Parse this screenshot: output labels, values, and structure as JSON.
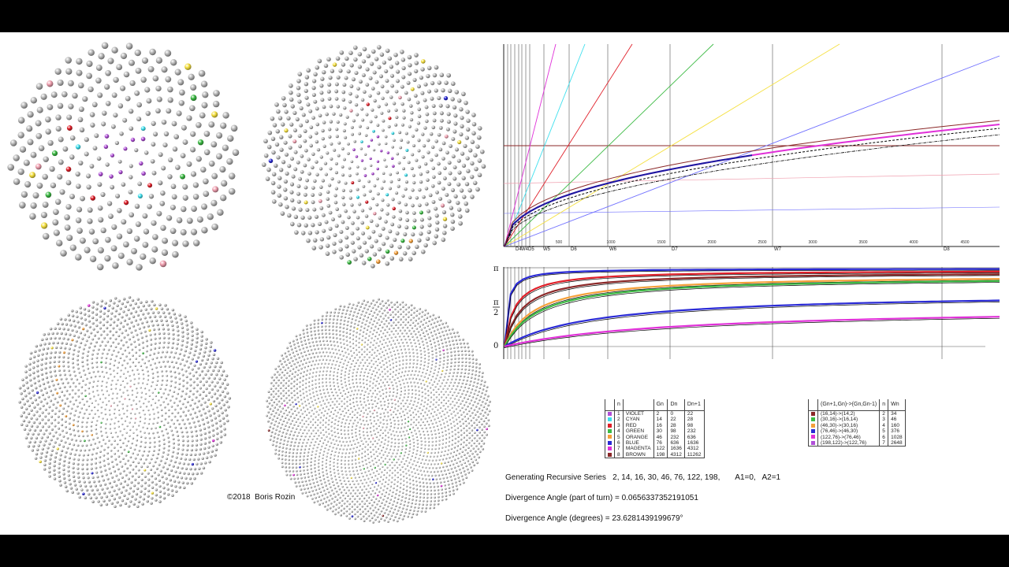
{
  "copyright": "©2018  Boris Rozin",
  "colors": {
    "violet": "#b04fd8",
    "cyan": "#3fe0ee",
    "red": "#e0202a",
    "green": "#3dbb45",
    "orange": "#f5a03a",
    "blue": "#2a2ad6",
    "magenta": "#e030d8",
    "brown": "#8b2828",
    "pink": "#f0a0b0",
    "yellow": "#f5e040",
    "grey": "#b8b8b8"
  },
  "discs": [
    {
      "name": "disc-1",
      "points": 340
    },
    {
      "name": "disc-2",
      "points": 720
    },
    {
      "name": "disc-3",
      "points": 1700
    },
    {
      "name": "disc-4",
      "points": 3000
    }
  ],
  "chart_top": {
    "type": "line",
    "x_ticks": [
      "500",
      "1000",
      "1500",
      "2000",
      "2500",
      "3000",
      "3500",
      "4000",
      "4500"
    ],
    "markers": [
      "D4",
      "W4",
      "D5",
      "W5",
      "D6",
      "W6",
      "D7",
      "W7",
      "D8"
    ],
    "series_colors": [
      "violet",
      "cyan",
      "red",
      "green",
      "yellow",
      "blue",
      "magenta",
      "brown"
    ]
  },
  "chart_bottom": {
    "type": "line",
    "y_labels": [
      "π",
      "π",
      "2",
      "0"
    ],
    "series_colors": [
      "blue",
      "red",
      "orange",
      "green",
      "blue",
      "magenta"
    ]
  },
  "table_left": {
    "headers": [
      "",
      "n",
      "",
      "Gn",
      "Dn",
      "Dn+1"
    ],
    "rows": [
      {
        "color": "violet",
        "n": "1",
        "name": "VIOLET",
        "gn": "2",
        "dn": "0",
        "dn1": "22"
      },
      {
        "color": "cyan",
        "n": "2",
        "name": "CYAN",
        "gn": "14",
        "dn": "22",
        "dn1": "28"
      },
      {
        "color": "red",
        "n": "3",
        "name": "RED",
        "gn": "16",
        "dn": "28",
        "dn1": "98"
      },
      {
        "color": "green",
        "n": "4",
        "name": "GREEN",
        "gn": "30",
        "dn": "98",
        "dn1": "232"
      },
      {
        "color": "orange",
        "n": "5",
        "name": "ORANGE",
        "gn": "46",
        "dn": "232",
        "dn1": "636"
      },
      {
        "color": "blue",
        "n": "6",
        "name": "BLUE",
        "gn": "76",
        "dn": "636",
        "dn1": "1636"
      },
      {
        "color": "magenta",
        "n": "7",
        "name": "MAGENTA",
        "gn": "122",
        "dn": "1636",
        "dn1": "4312"
      },
      {
        "color": "brown",
        "n": "8",
        "name": "BROWN",
        "gn": "198",
        "dn": "4312",
        "dn1": "11262"
      }
    ]
  },
  "table_right": {
    "headers": [
      "",
      "(Gn+1,Gn)->(Gn,Gn-1)",
      "n",
      "Wn"
    ],
    "rows": [
      {
        "color": "brown",
        "pair": "(16,14)->(14,2)",
        "n": "2",
        "wn": "34"
      },
      {
        "color": "green",
        "pair": "(30,16)->(16,14)",
        "n": "3",
        "wn": "46"
      },
      {
        "color": "orange",
        "pair": "(46,30)->(30,16)",
        "n": "4",
        "wn": "160"
      },
      {
        "color": "blue",
        "pair": "(76,46)->(46,30)",
        "n": "5",
        "wn": "376"
      },
      {
        "color": "magenta",
        "pair": "(122,76)->(76,46)",
        "n": "6",
        "wn": "1028"
      },
      {
        "color": "violet",
        "pair": "(198,122)->(122,76)",
        "n": "7",
        "wn": "2648"
      }
    ]
  },
  "info": {
    "series": "Generating Recursive Series   2, 14, 16, 30, 46, 76, 122, 198,       A1=0,   A2=1",
    "divergence_turn": "Divergence Angle (part of turn) = 0.0656337352191051",
    "divergence_deg": "Divergence Angle (degrees) = 23.6281439199679°"
  }
}
